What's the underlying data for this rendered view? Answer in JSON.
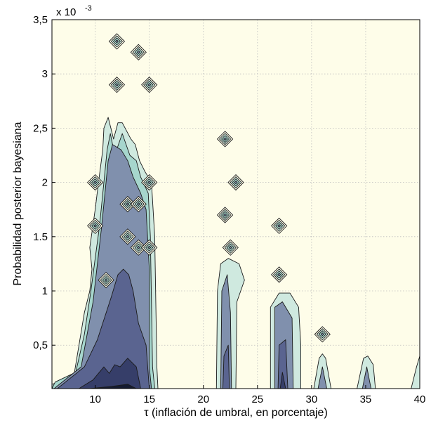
{
  "chart_data": {
    "type": "contour",
    "xlabel": "τ (inflación de umbral, en porcentaje)",
    "ylabel": "Probabilidad posterior bayesiana",
    "y_exponent_label": "x 10",
    "y_exponent_power": "-3",
    "xlim": [
      6,
      40
    ],
    "ylim": [
      0.1,
      3.5
    ],
    "x_ticks": [
      10,
      15,
      20,
      25,
      30,
      35,
      40
    ],
    "x_tick_labels": [
      "10",
      "15",
      "20",
      "25",
      "30",
      "35",
      "40"
    ],
    "y_ticks": [
      0.5,
      1,
      1.5,
      2,
      2.5,
      3,
      3.5
    ],
    "y_tick_labels": [
      "0,5",
      "1",
      "1.5",
      "2",
      "2,5",
      "3",
      "3,5"
    ],
    "grid": true,
    "background_color": "#fefde9",
    "level_colors": [
      "#cfe9df",
      "#a6d6cd",
      "#8090ad",
      "#5a6490",
      "#363e69",
      "#141a30"
    ],
    "line_color": "#1a1a1a",
    "regions": [
      {
        "level": 1,
        "points": [
          [
            6,
            0.1
          ],
          [
            6,
            0.14
          ],
          [
            8,
            0.2
          ],
          [
            8.5,
            0.5
          ],
          [
            9,
            0.8
          ],
          [
            9.5,
            1.0
          ],
          [
            9.7,
            1.2
          ],
          [
            9.5,
            1.4
          ],
          [
            10,
            1.75
          ],
          [
            10.3,
            2.0
          ],
          [
            10.7,
            2.3
          ],
          [
            10.8,
            2.5
          ],
          [
            11.2,
            2.6
          ],
          [
            11.7,
            2.4
          ],
          [
            12.1,
            2.55
          ],
          [
            12.5,
            2.55
          ],
          [
            13.3,
            2.4
          ],
          [
            13.7,
            2.35
          ],
          [
            14.1,
            2.2
          ],
          [
            14.6,
            2.1
          ],
          [
            15.2,
            2.0
          ],
          [
            15.5,
            1.5
          ],
          [
            15.7,
            0.3
          ],
          [
            15.8,
            0.1
          ]
        ]
      },
      {
        "level": 2,
        "points": [
          [
            6,
            0.1
          ],
          [
            6.3,
            0.16
          ],
          [
            8.2,
            0.25
          ],
          [
            9,
            0.6
          ],
          [
            9.6,
            1.0
          ],
          [
            10,
            1.3
          ],
          [
            10.4,
            1.6
          ],
          [
            10.8,
            2.0
          ],
          [
            11.1,
            2.3
          ],
          [
            11.4,
            2.45
          ],
          [
            11.8,
            2.25
          ],
          [
            12.5,
            2.45
          ],
          [
            13.2,
            2.25
          ],
          [
            13.8,
            2.2
          ],
          [
            14.2,
            2.05
          ],
          [
            14.9,
            1.9
          ],
          [
            15.1,
            1.5
          ],
          [
            15.3,
            0.3
          ],
          [
            15.5,
            0.1
          ]
        ]
      },
      {
        "level": 3,
        "points": [
          [
            6.2,
            0.1
          ],
          [
            8.7,
            0.3
          ],
          [
            9.8,
            0.9
          ],
          [
            10.6,
            1.6
          ],
          [
            11.2,
            2.2
          ],
          [
            11.6,
            2.35
          ],
          [
            12.4,
            2.3
          ],
          [
            13,
            2.2
          ],
          [
            13.5,
            2.05
          ],
          [
            14.2,
            1.9
          ],
          [
            14.7,
            1.75
          ],
          [
            15,
            1.2
          ],
          [
            15,
            0.3
          ],
          [
            15.2,
            0.1
          ]
        ]
      },
      {
        "level": 4,
        "points": [
          [
            6.5,
            0.1
          ],
          [
            9,
            0.3
          ],
          [
            10.2,
            0.55
          ],
          [
            11.5,
            0.95
          ],
          [
            12.1,
            1.15
          ],
          [
            12.6,
            1.2
          ],
          [
            13.1,
            1.15
          ],
          [
            13.5,
            1.0
          ],
          [
            14,
            0.7
          ],
          [
            14.7,
            0.5
          ],
          [
            15,
            0.1
          ]
        ]
      },
      {
        "level": 5,
        "points": [
          [
            8.5,
            0.1
          ],
          [
            9.8,
            0.18
          ],
          [
            10.8,
            0.3
          ],
          [
            11.3,
            0.24
          ],
          [
            11.8,
            0.32
          ],
          [
            12.3,
            0.3
          ],
          [
            13,
            0.38
          ],
          [
            13.8,
            0.3
          ],
          [
            14.2,
            0.1
          ]
        ]
      },
      {
        "level": 6,
        "points": [
          [
            9.5,
            0.1
          ],
          [
            11.5,
            0.12
          ],
          [
            13,
            0.14
          ],
          [
            13.8,
            0.1
          ]
        ]
      },
      {
        "level": 1,
        "points": [
          [
            21.2,
            0.1
          ],
          [
            21.3,
            1.0
          ],
          [
            21.6,
            1.25
          ],
          [
            22.3,
            1.3
          ],
          [
            23.3,
            1.25
          ],
          [
            23.8,
            1.1
          ],
          [
            23.1,
            0.9
          ],
          [
            23,
            0.1
          ]
        ]
      },
      {
        "level": 3,
        "points": [
          [
            21.6,
            0.1
          ],
          [
            21.7,
            1.0
          ],
          [
            22.2,
            1.15
          ],
          [
            22.5,
            0.8
          ],
          [
            22.6,
            0.1
          ]
        ]
      },
      {
        "level": 4,
        "points": [
          [
            21.8,
            0.1
          ],
          [
            21.9,
            0.4
          ],
          [
            22.3,
            0.5
          ],
          [
            22.4,
            0.1
          ]
        ]
      },
      {
        "level": 1,
        "points": [
          [
            26.2,
            0.1
          ],
          [
            26.2,
            0.85
          ],
          [
            27,
            0.98
          ],
          [
            28,
            0.98
          ],
          [
            28.8,
            0.85
          ],
          [
            29,
            0.5
          ],
          [
            29,
            0.1
          ]
        ]
      },
      {
        "level": 3,
        "points": [
          [
            26.6,
            0.1
          ],
          [
            26.6,
            0.85
          ],
          [
            27.3,
            0.9
          ],
          [
            28.2,
            0.75
          ],
          [
            28.3,
            0.1
          ]
        ]
      },
      {
        "level": 4,
        "points": [
          [
            26.9,
            0.1
          ],
          [
            27,
            0.5
          ],
          [
            27.6,
            0.55
          ],
          [
            27.8,
            0.1
          ]
        ]
      },
      {
        "level": 5,
        "points": [
          [
            27.1,
            0.1
          ],
          [
            27.3,
            0.25
          ],
          [
            27.6,
            0.1
          ]
        ]
      },
      {
        "level": 1,
        "points": [
          [
            30.2,
            0.1
          ],
          [
            30.7,
            0.38
          ],
          [
            31,
            0.42
          ],
          [
            31.3,
            0.38
          ],
          [
            31.8,
            0.1
          ]
        ]
      },
      {
        "level": 3,
        "points": [
          [
            30.6,
            0.1
          ],
          [
            31,
            0.3
          ],
          [
            31.4,
            0.1
          ]
        ]
      },
      {
        "level": 1,
        "points": [
          [
            34.2,
            0.1
          ],
          [
            34.8,
            0.38
          ],
          [
            35.2,
            0.4
          ],
          [
            35.7,
            0.32
          ],
          [
            35.9,
            0.1
          ]
        ]
      },
      {
        "level": 3,
        "points": [
          [
            34.7,
            0.1
          ],
          [
            35.1,
            0.3
          ],
          [
            35.5,
            0.1
          ]
        ]
      },
      {
        "level": 1,
        "points": [
          [
            39.2,
            0.1
          ],
          [
            39.7,
            0.3
          ],
          [
            40,
            0.4
          ],
          [
            40,
            0.1
          ]
        ]
      }
    ],
    "islands": [
      {
        "x": 12,
        "y": 3.3,
        "level": 2
      },
      {
        "x": 14,
        "y": 3.2,
        "level": 2
      },
      {
        "x": 12,
        "y": 2.9,
        "level": 2
      },
      {
        "x": 15,
        "y": 2.9,
        "level": 2
      },
      {
        "x": 10,
        "y": 2.0,
        "level": 2
      },
      {
        "x": 10,
        "y": 1.6,
        "level": 2
      },
      {
        "x": 11,
        "y": 1.1,
        "level": 2
      },
      {
        "x": 13,
        "y": 1.8,
        "level": 3
      },
      {
        "x": 14,
        "y": 1.8,
        "level": 2
      },
      {
        "x": 13,
        "y": 1.5,
        "level": 2
      },
      {
        "x": 14,
        "y": 1.4,
        "level": 3
      },
      {
        "x": 15,
        "y": 2.0,
        "level": 3
      },
      {
        "x": 15,
        "y": 1.4,
        "level": 2
      },
      {
        "x": 22,
        "y": 2.4,
        "level": 2
      },
      {
        "x": 23,
        "y": 2.0,
        "level": 2
      },
      {
        "x": 22,
        "y": 1.7,
        "level": 2
      },
      {
        "x": 22.5,
        "y": 1.4,
        "level": 3
      },
      {
        "x": 27,
        "y": 1.6,
        "level": 2
      },
      {
        "x": 27,
        "y": 1.15,
        "level": 3
      },
      {
        "x": 31,
        "y": 0.6,
        "level": 2
      }
    ]
  }
}
